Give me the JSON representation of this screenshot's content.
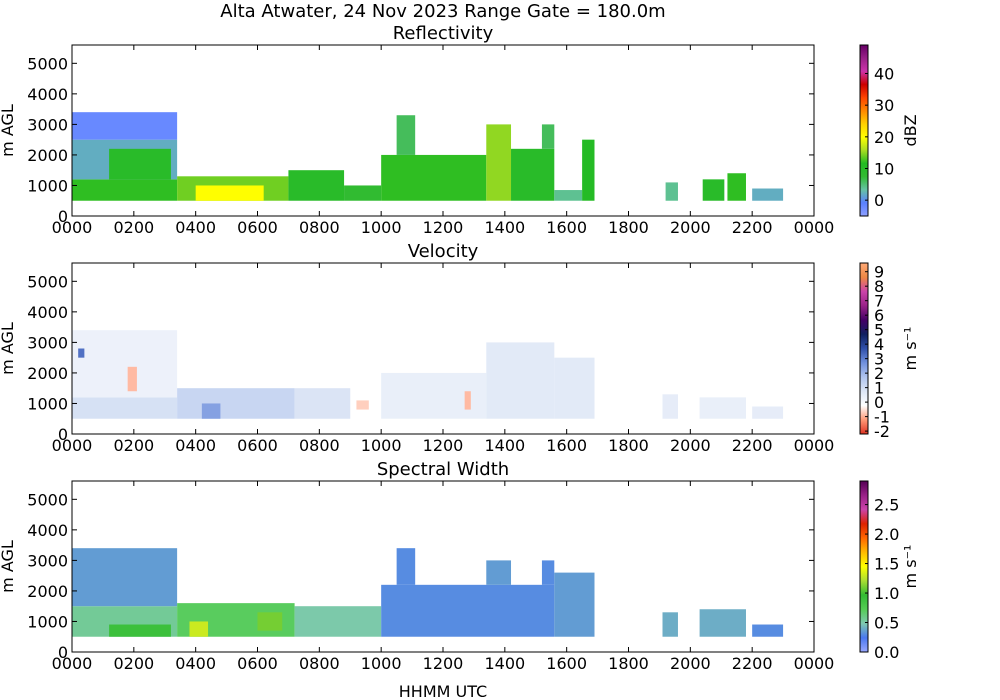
{
  "figure": {
    "title": "Alta Atwater, 24 Nov 2023 Range Gate = 180.0m",
    "xlabel": "HHMM UTC"
  },
  "chart_data": [
    {
      "type": "heatmap",
      "title": "Reflectivity",
      "ylabel": "m AGL",
      "xlim": [
        0,
        2400
      ],
      "ylim": [
        0,
        5600
      ],
      "x_tick_labels": [
        "0000",
        "0200",
        "0400",
        "0600",
        "0800",
        "1000",
        "1200",
        "1400",
        "1600",
        "1800",
        "2000",
        "2200",
        "0000"
      ],
      "y_tick_labels": [
        "0",
        "1000",
        "2000",
        "3000",
        "4000",
        "5000"
      ],
      "colorbar": {
        "label": "dBZ",
        "ticks": [
          "0",
          "10",
          "20",
          "30",
          "40"
        ],
        "tick_values": [
          0,
          10,
          20,
          30,
          40
        ],
        "range": [
          -5,
          49
        ],
        "colors": [
          "#8ea0ff",
          "#5a80ff",
          "#66c2a5",
          "#33bb33",
          "#22bb22",
          "#aadd22",
          "#ffff00",
          "#ffd000",
          "#ff8800",
          "#ff4400",
          "#cc0000",
          "#cc33aa",
          "#992288",
          "#660066"
        ]
      },
      "data_extent": {
        "x": [
          0,
          1690
        ],
        "y": [
          500,
          3400
        ]
      },
      "blocks": [
        {
          "x0": 0,
          "x1": 340,
          "y0": 500,
          "y1": 1200,
          "v": 12
        },
        {
          "x0": 0,
          "x1": 340,
          "y0": 1200,
          "y1": 2500,
          "v": 2
        },
        {
          "x0": 0,
          "x1": 340,
          "y0": 2500,
          "y1": 3400,
          "v": -2
        },
        {
          "x0": 120,
          "x1": 320,
          "y0": 1200,
          "y1": 2200,
          "v": 10
        },
        {
          "x0": 340,
          "x1": 700,
          "y0": 500,
          "y1": 1300,
          "v": 14
        },
        {
          "x0": 400,
          "x1": 620,
          "y0": 500,
          "y1": 1000,
          "v": 20
        },
        {
          "x0": 700,
          "x1": 880,
          "y0": 500,
          "y1": 1500,
          "v": 10
        },
        {
          "x0": 880,
          "x1": 1000,
          "y0": 500,
          "y1": 1000,
          "v": 8
        },
        {
          "x0": 1000,
          "x1": 1340,
          "y0": 500,
          "y1": 2000,
          "v": 12
        },
        {
          "x0": 1050,
          "x1": 1110,
          "y0": 2000,
          "y1": 3300,
          "v": 6
        },
        {
          "x0": 1340,
          "x1": 1420,
          "y0": 500,
          "y1": 3000,
          "v": 15
        },
        {
          "x0": 1420,
          "x1": 1560,
          "y0": 500,
          "y1": 2200,
          "v": 10
        },
        {
          "x0": 1520,
          "x1": 1560,
          "y0": 2200,
          "y1": 3000,
          "v": 6
        },
        {
          "x0": 1560,
          "x1": 1650,
          "y0": 500,
          "y1": 850,
          "v": 4
        },
        {
          "x0": 1650,
          "x1": 1690,
          "y0": 500,
          "y1": 2500,
          "v": 11
        },
        {
          "x0": 1920,
          "x1": 1960,
          "y0": 500,
          "y1": 1100,
          "v": 4
        },
        {
          "x0": 2040,
          "x1": 2110,
          "y0": 500,
          "y1": 1200,
          "v": 10
        },
        {
          "x0": 2120,
          "x1": 2180,
          "y0": 500,
          "y1": 1400,
          "v": 12
        },
        {
          "x0": 2200,
          "x1": 2300,
          "y0": 500,
          "y1": 900,
          "v": 2
        }
      ]
    },
    {
      "type": "heatmap",
      "title": "Velocity",
      "ylabel": "m s⁻¹",
      "ylabel_main": "m AGL",
      "xlim": [
        0,
        2400
      ],
      "ylim": [
        0,
        5600
      ],
      "x_tick_labels": [
        "0000",
        "0200",
        "0400",
        "0600",
        "0800",
        "1000",
        "1200",
        "1400",
        "1600",
        "1800",
        "2000",
        "2200",
        "0000"
      ],
      "y_tick_labels": [
        "0",
        "1000",
        "2000",
        "3000",
        "4000",
        "5000"
      ],
      "colorbar": {
        "label": "m s⁻¹",
        "ticks": [
          "-2",
          "-1",
          "0",
          "1",
          "2",
          "3",
          "4",
          "5",
          "6",
          "7",
          "8",
          "9"
        ],
        "tick_values": [
          -2,
          -1,
          0,
          1,
          2,
          3,
          4,
          5,
          6,
          7,
          8,
          9
        ],
        "range": [
          -2.2,
          9.6
        ],
        "colors": [
          "#dd3322",
          "#ff9977",
          "#ffffff",
          "#dde6f5",
          "#b0c4ee",
          "#7090dd",
          "#3050aa",
          "#102060",
          "#440066",
          "#992288",
          "#cc44aa",
          "#ee8844",
          "#ffaa77"
        ]
      },
      "blocks": [
        {
          "x0": 0,
          "x1": 340,
          "y0": 500,
          "y1": 1200,
          "v": 0.9
        },
        {
          "x0": 0,
          "x1": 340,
          "y0": 1200,
          "y1": 3400,
          "v": 0.3
        },
        {
          "x0": 20,
          "x1": 40,
          "y0": 2500,
          "y1": 2800,
          "v": 3.2
        },
        {
          "x0": 180,
          "x1": 210,
          "y0": 1400,
          "y1": 2200,
          "v": -0.9
        },
        {
          "x0": 340,
          "x1": 720,
          "y0": 500,
          "y1": 1500,
          "v": 1.2
        },
        {
          "x0": 420,
          "x1": 480,
          "y0": 500,
          "y1": 1000,
          "v": 2.4
        },
        {
          "x0": 720,
          "x1": 900,
          "y0": 500,
          "y1": 1500,
          "v": 0.8
        },
        {
          "x0": 920,
          "x1": 960,
          "y0": 800,
          "y1": 1100,
          "v": -0.7
        },
        {
          "x0": 1000,
          "x1": 1340,
          "y0": 500,
          "y1": 2000,
          "v": 0.4
        },
        {
          "x0": 1270,
          "x1": 1290,
          "y0": 800,
          "y1": 1400,
          "v": -0.9
        },
        {
          "x0": 1340,
          "x1": 1560,
          "y0": 500,
          "y1": 3000,
          "v": 0.6
        },
        {
          "x0": 1560,
          "x1": 1690,
          "y0": 500,
          "y1": 2500,
          "v": 0.6
        },
        {
          "x0": 1910,
          "x1": 1960,
          "y0": 500,
          "y1": 1300,
          "v": 0.5
        },
        {
          "x0": 2030,
          "x1": 2180,
          "y0": 500,
          "y1": 1200,
          "v": 0.4
        },
        {
          "x0": 2200,
          "x1": 2300,
          "y0": 500,
          "y1": 900,
          "v": 0.5
        }
      ]
    },
    {
      "type": "heatmap",
      "title": "Spectral Width",
      "ylabel": "m AGL",
      "xlim": [
        0,
        2400
      ],
      "ylim": [
        0,
        5600
      ],
      "x_tick_labels": [
        "0000",
        "0200",
        "0400",
        "0600",
        "0800",
        "1000",
        "1200",
        "1400",
        "1600",
        "1800",
        "2000",
        "2200",
        "0000"
      ],
      "y_tick_labels": [
        "0",
        "1000",
        "2000",
        "3000",
        "4000",
        "5000"
      ],
      "colorbar": {
        "label": "m s⁻¹",
        "ticks": [
          "0.0",
          "0.5",
          "1.0",
          "1.5",
          "2.0",
          "2.5"
        ],
        "tick_values": [
          0,
          0.5,
          1.0,
          1.5,
          2.0,
          2.5
        ],
        "range": [
          0,
          2.9
        ],
        "colors": [
          "#99a8ff",
          "#4a78f0",
          "#7fc9b0",
          "#55cc55",
          "#33bb33",
          "#aadd33",
          "#ffff00",
          "#ffbb00",
          "#ff6600",
          "#dd2200",
          "#cc44aa",
          "#992288",
          "#550055"
        ]
      },
      "blocks": [
        {
          "x0": 0,
          "x1": 340,
          "y0": 500,
          "y1": 1500,
          "v": 0.55
        },
        {
          "x0": 0,
          "x1": 340,
          "y0": 1500,
          "y1": 3400,
          "v": 0.35
        },
        {
          "x0": 120,
          "x1": 320,
          "y0": 500,
          "y1": 900,
          "v": 0.9
        },
        {
          "x0": 340,
          "x1": 720,
          "y0": 500,
          "y1": 1600,
          "v": 0.7
        },
        {
          "x0": 380,
          "x1": 440,
          "y0": 500,
          "y1": 1000,
          "v": 1.3
        },
        {
          "x0": 600,
          "x1": 680,
          "y0": 700,
          "y1": 1300,
          "v": 1.1
        },
        {
          "x0": 720,
          "x1": 1000,
          "y0": 500,
          "y1": 1500,
          "v": 0.5
        },
        {
          "x0": 1000,
          "x1": 1560,
          "y0": 500,
          "y1": 2200,
          "v": 0.3
        },
        {
          "x0": 1050,
          "x1": 1110,
          "y0": 2200,
          "y1": 3400,
          "v": 0.3
        },
        {
          "x0": 1340,
          "x1": 1420,
          "y0": 2200,
          "y1": 3000,
          "v": 0.35
        },
        {
          "x0": 1520,
          "x1": 1560,
          "y0": 2200,
          "y1": 3000,
          "v": 0.3
        },
        {
          "x0": 1560,
          "x1": 1690,
          "y0": 500,
          "y1": 2600,
          "v": 0.35
        },
        {
          "x0": 1910,
          "x1": 1960,
          "y0": 500,
          "y1": 1300,
          "v": 0.4
        },
        {
          "x0": 2030,
          "x1": 2180,
          "y0": 500,
          "y1": 1400,
          "v": 0.4
        },
        {
          "x0": 2200,
          "x1": 2300,
          "y0": 500,
          "y1": 900,
          "v": 0.3
        }
      ]
    }
  ]
}
